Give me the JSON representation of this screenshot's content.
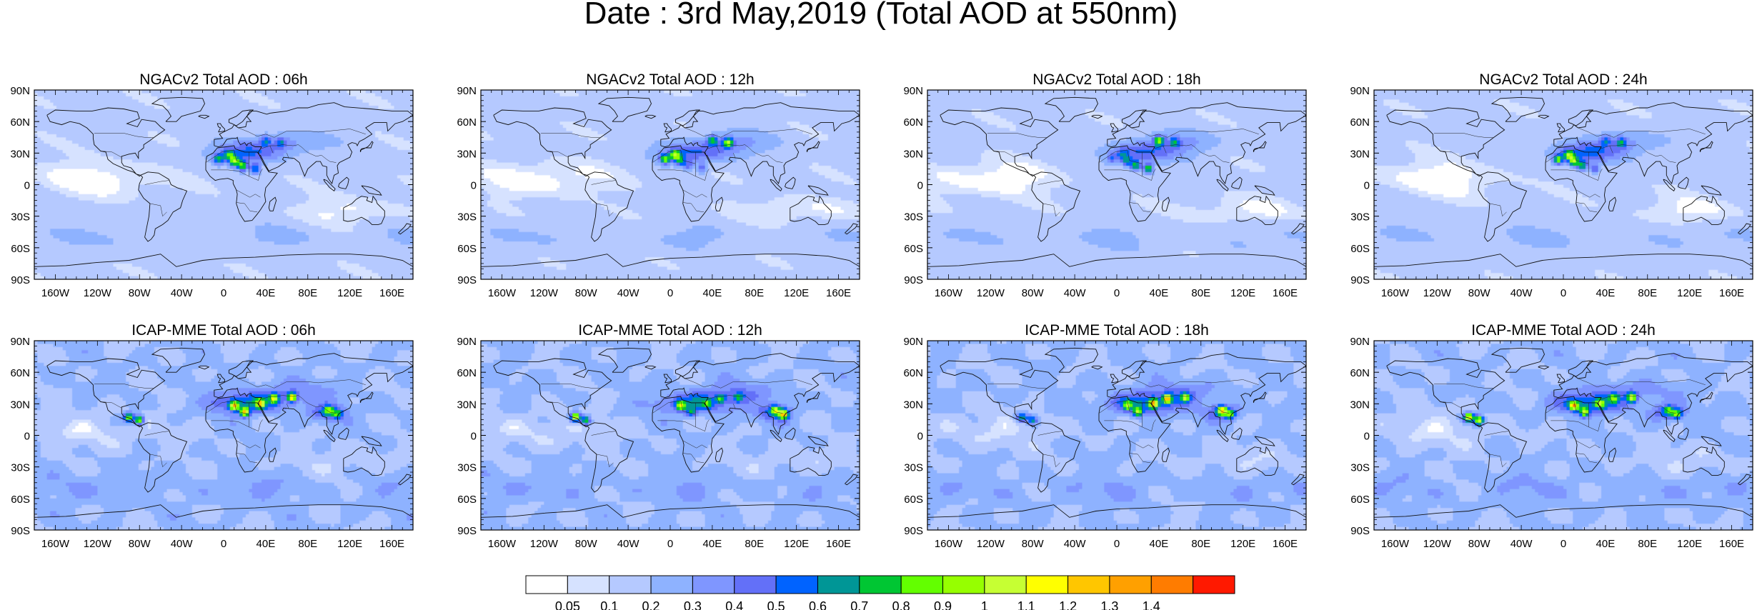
{
  "title": "Date : 3rd May,2019 (Total AOD at 550nm)",
  "panels": [
    {
      "title": "NGACv2 Total AOD : 06h",
      "model": "NGACv2",
      "hour": "06h"
    },
    {
      "title": "NGACv2 Total AOD : 12h",
      "model": "NGACv2",
      "hour": "12h"
    },
    {
      "title": "NGACv2 Total AOD : 18h",
      "model": "NGACv2",
      "hour": "18h"
    },
    {
      "title": "NGACv2 Total AOD : 24h",
      "model": "NGACv2",
      "hour": "24h"
    },
    {
      "title": "ICAP-MME Total AOD : 06h",
      "model": "ICAP-MME",
      "hour": "06h"
    },
    {
      "title": "ICAP-MME Total AOD : 12h",
      "model": "ICAP-MME",
      "hour": "12h"
    },
    {
      "title": "ICAP-MME Total AOD : 18h",
      "model": "ICAP-MME",
      "hour": "18h"
    },
    {
      "title": "ICAP-MME Total AOD : 24h",
      "model": "ICAP-MME",
      "hour": "24h"
    }
  ],
  "lat_labels": [
    "90N",
    "60N",
    "30N",
    "0",
    "30S",
    "60S",
    "90S"
  ],
  "lon_labels": [
    "160W",
    "120W",
    "80W",
    "40W",
    "0",
    "40E",
    "80E",
    "120E",
    "160E"
  ],
  "colorbar": {
    "colors": [
      "#ffffff",
      "#d6e2ff",
      "#b5c9ff",
      "#8eb2ff",
      "#7f96ff",
      "#6370f8",
      "#0063ff",
      "#009696",
      "#00c633",
      "#63ff00",
      "#96ff00",
      "#c6ff33",
      "#ffff00",
      "#ffc600",
      "#ffa000",
      "#ff7c00",
      "#ff1900"
    ],
    "labels": [
      "0.05",
      "0.1",
      "0.2",
      "0.3",
      "0.4",
      "0.5",
      "0.6",
      "0.7",
      "0.8",
      "0.9",
      "1",
      "1.1",
      "1.2",
      "1.3",
      "1.4"
    ]
  }
}
